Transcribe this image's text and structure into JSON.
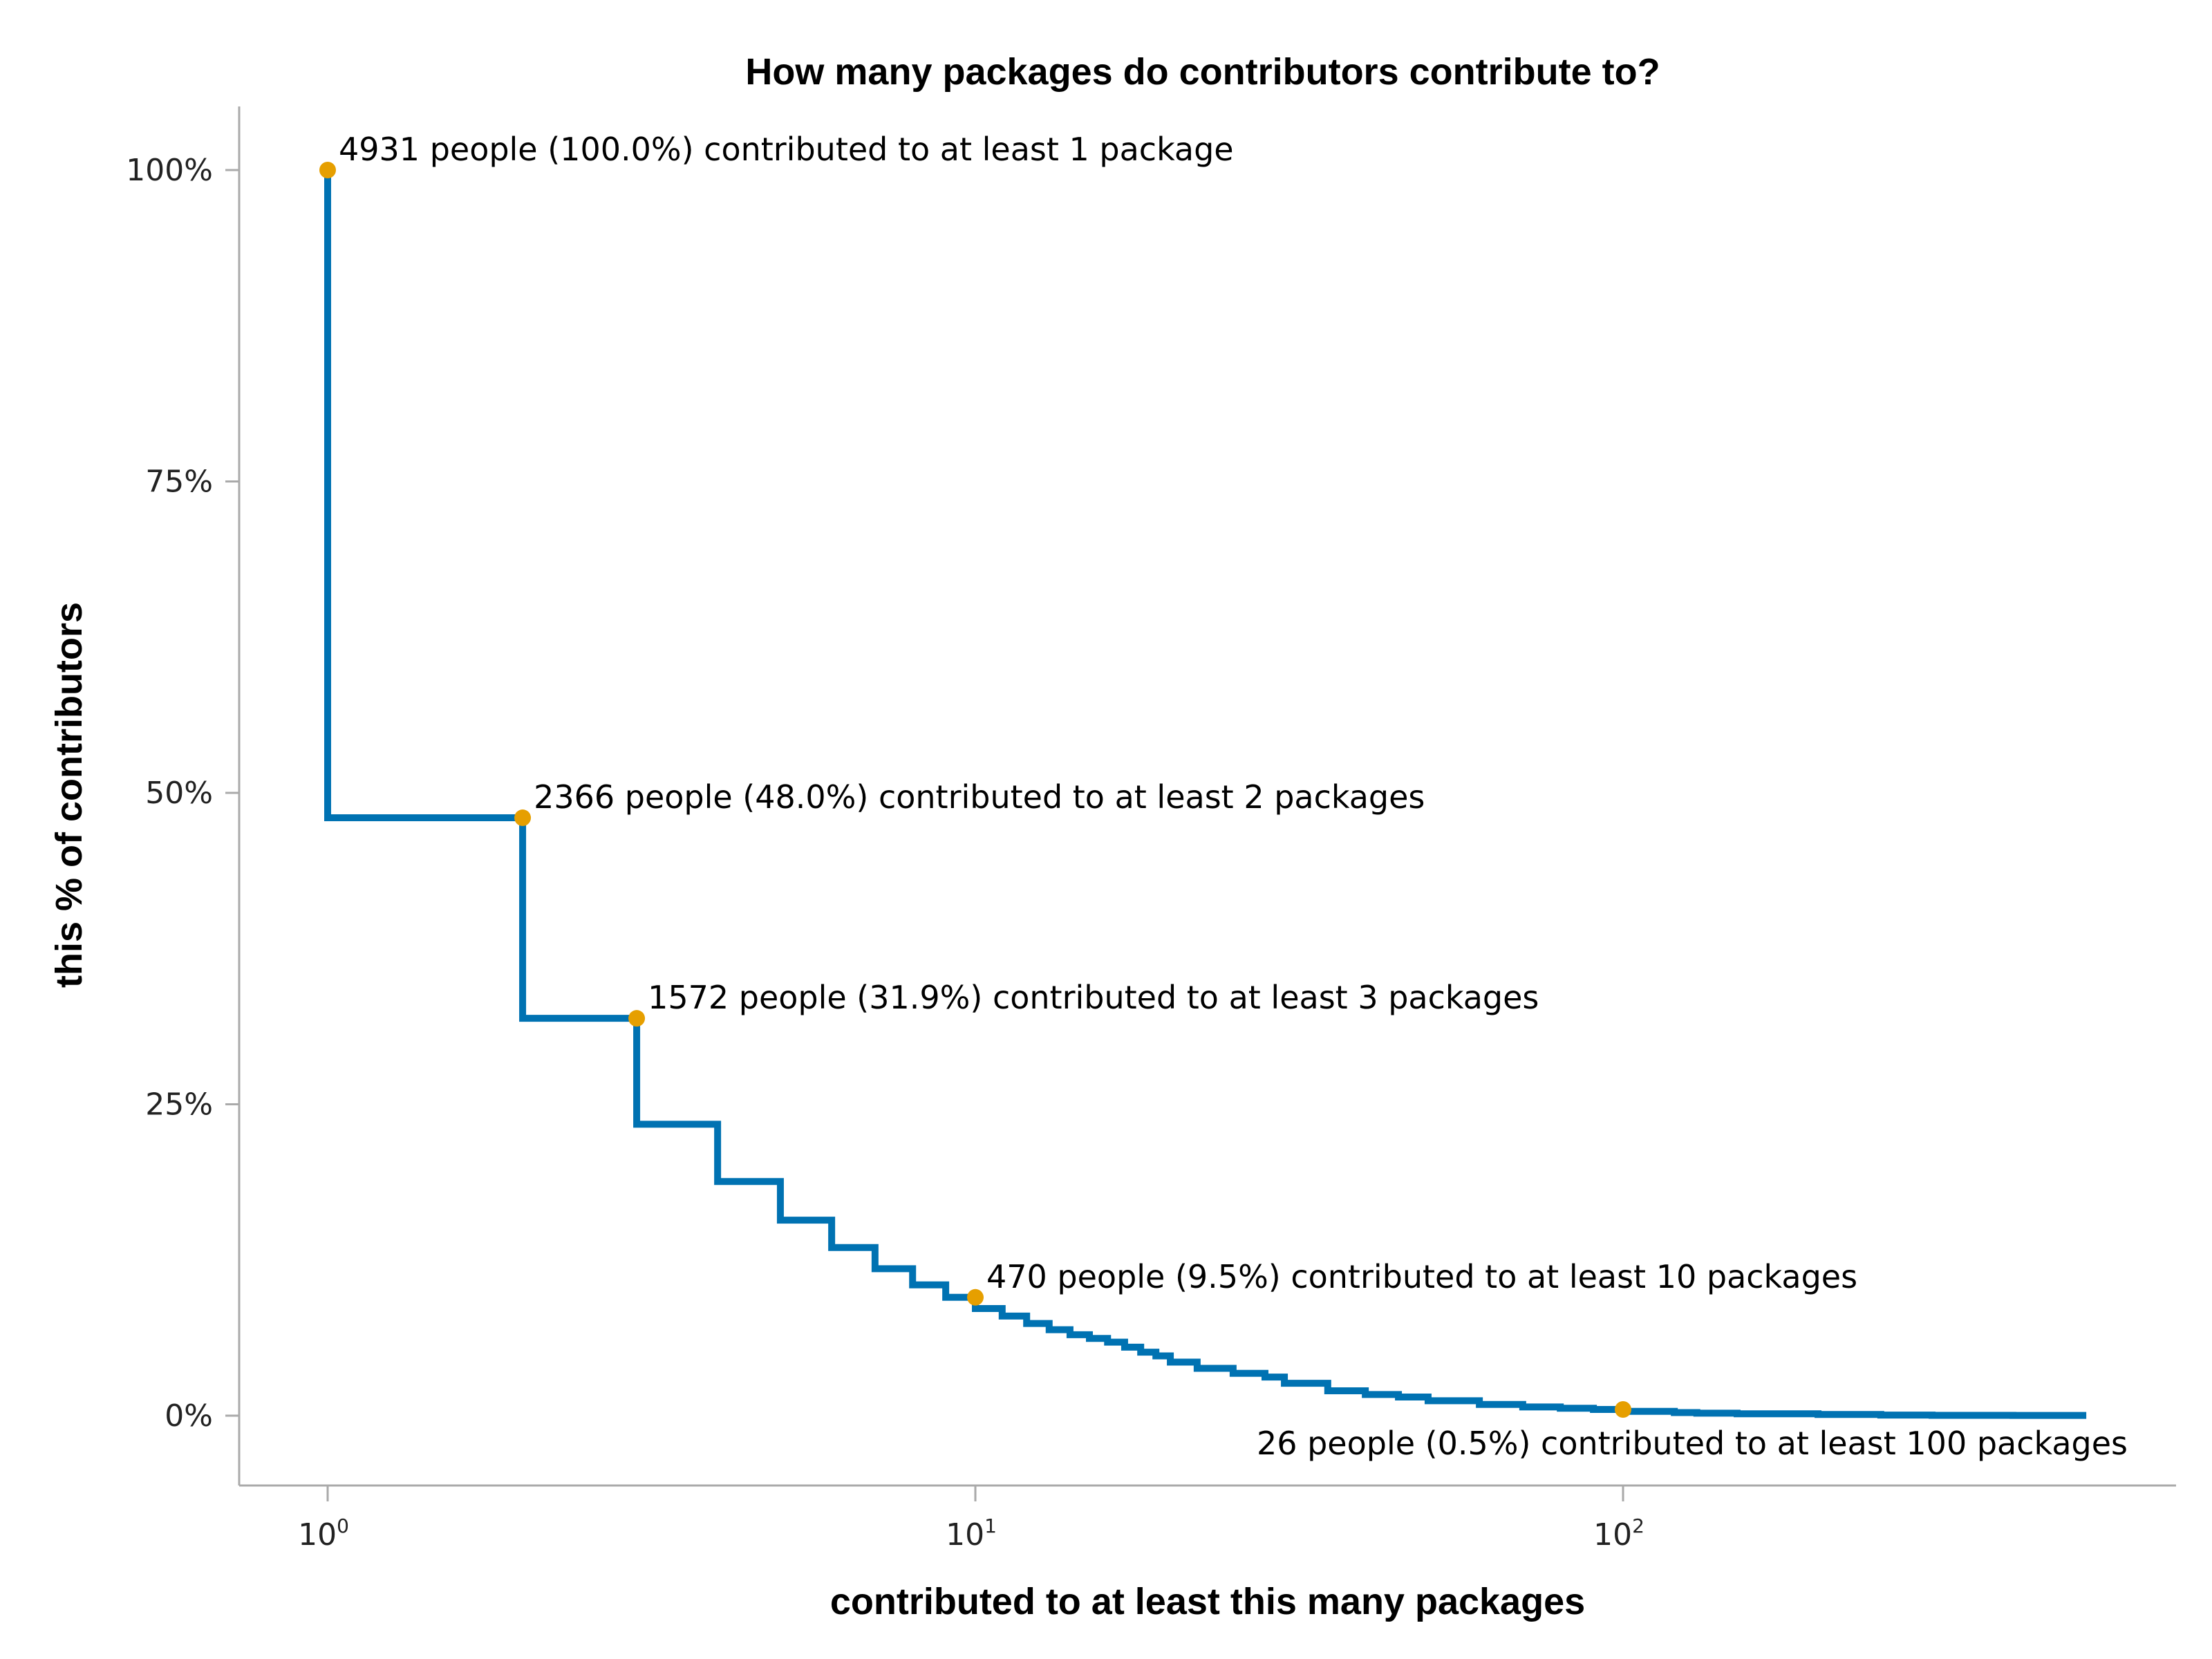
{
  "chart_data": {
    "type": "line",
    "step": "pre",
    "title": "How many packages do contributors contribute to?",
    "xlabel": "contributed to at least this many packages",
    "ylabel": "this % of contributors",
    "xscale": "log",
    "xlim": [
      0.73,
      1000
    ],
    "ylim": [
      -5,
      105
    ],
    "x_ticks": [
      {
        "base": "10",
        "exp": "0",
        "value": 1
      },
      {
        "base": "10",
        "exp": "1",
        "value": 10
      },
      {
        "base": "10",
        "exp": "2",
        "value": 100
      }
    ],
    "y_ticks": [
      {
        "label": "0%",
        "value": 0
      },
      {
        "label": "25%",
        "value": 25
      },
      {
        "label": "50%",
        "value": 50
      },
      {
        "label": "75%",
        "value": 75
      },
      {
        "label": "100%",
        "value": 100
      }
    ],
    "grid": false,
    "line_color": "#0072B2",
    "marker_color": "#E69F00",
    "x": [
      1,
      2,
      3,
      4,
      5,
      6,
      7,
      8,
      9,
      10,
      11,
      12,
      13,
      14,
      15,
      16,
      17,
      18,
      19,
      20,
      22,
      25,
      28,
      30,
      35,
      40,
      45,
      50,
      60,
      70,
      80,
      90,
      100,
      120,
      130,
      150,
      200,
      250,
      300,
      400,
      519
    ],
    "y": [
      100,
      48.0,
      31.9,
      23.4,
      18.8,
      15.7,
      13.5,
      11.8,
      10.5,
      9.5,
      8.6,
      8.0,
      7.4,
      6.9,
      6.5,
      6.2,
      5.9,
      5.5,
      5.1,
      4.8,
      4.3,
      3.8,
      3.4,
      3.1,
      2.6,
      2.0,
      1.7,
      1.5,
      1.2,
      0.9,
      0.7,
      0.6,
      0.5,
      0.35,
      0.25,
      0.2,
      0.15,
      0.1,
      0.05,
      0.03,
      0.02
    ],
    "annotations": [
      {
        "x": 1,
        "y": 100.0,
        "text": "4931 people (100.0%) contributed to at least 1 package",
        "position": "above-right"
      },
      {
        "x": 2,
        "y": 48.0,
        "text": "2366 people (48.0%) contributed to at least 2 packages",
        "position": "above-right"
      },
      {
        "x": 3,
        "y": 31.9,
        "text": "1572 people (31.9%) contributed to at least 3 packages",
        "position": "above-right"
      },
      {
        "x": 10,
        "y": 9.5,
        "text": "470 people (9.5%) contributed to at least 10 packages",
        "position": "above-right"
      },
      {
        "x": 100,
        "y": 0.5,
        "text": "26 people (0.5%) contributed to at least 100 packages",
        "position": "below"
      }
    ]
  }
}
